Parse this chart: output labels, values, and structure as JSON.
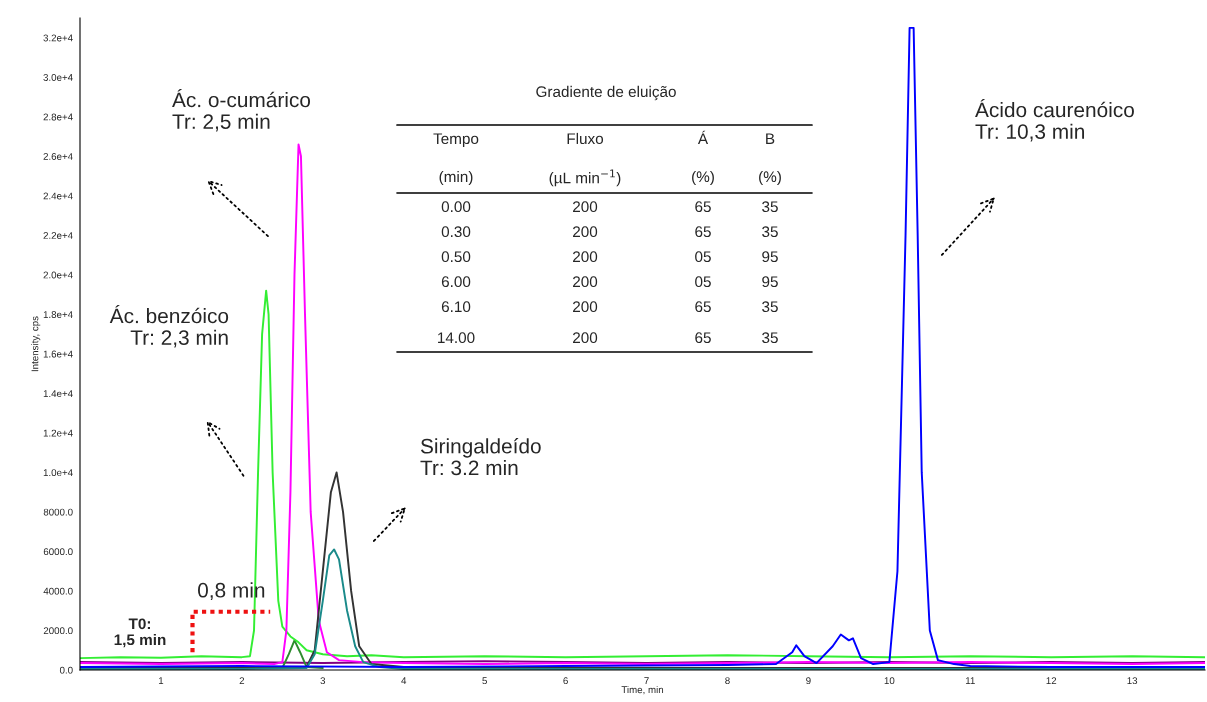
{
  "chart_data": {
    "type": "line",
    "xlabel": "Time, min",
    "ylabel": "Intensity, cps",
    "xlim": [
      0,
      13.9
    ],
    "ylim": [
      0,
      33000
    ],
    "xticks": [
      1,
      2,
      3,
      4,
      5,
      6,
      7,
      8,
      9,
      10,
      11,
      12,
      13
    ],
    "yticks": [
      {
        "value": 0,
        "label": "0.0"
      },
      {
        "value": 2000,
        "label": "2000.0"
      },
      {
        "value": 4000,
        "label": "4000.0"
      },
      {
        "value": 6000,
        "label": "6000.0"
      },
      {
        "value": 8000,
        "label": "8000.0"
      },
      {
        "value": 10000,
        "label": "1.0e+4"
      },
      {
        "value": 12000,
        "label": "1.2e+4"
      },
      {
        "value": 14000,
        "label": "1.4e+4"
      },
      {
        "value": 16000,
        "label": "1.6e+4"
      },
      {
        "value": 18000,
        "label": "1.8e+4"
      },
      {
        "value": 20000,
        "label": "2.0e+4"
      },
      {
        "value": 22000,
        "label": "2.2e+4"
      },
      {
        "value": 24000,
        "label": "2.4e+4"
      },
      {
        "value": 26000,
        "label": "2.6e+4"
      },
      {
        "value": 28000,
        "label": "2.8e+4"
      },
      {
        "value": 30000,
        "label": "3.0e+4"
      },
      {
        "value": 32000,
        "label": "3.2e+4"
      }
    ],
    "grid": false,
    "series": [
      {
        "color": "#800080",
        "x": [
          0,
          1,
          2,
          3,
          4,
          5,
          6,
          7,
          8,
          9,
          10,
          11,
          12,
          13,
          13.9
        ],
        "values": [
          400,
          350,
          400,
          350,
          400,
          450,
          400,
          350,
          400,
          350,
          400,
          350,
          400,
          350,
          400
        ]
      },
      {
        "color": "#2e8b2e",
        "x": [
          2.4,
          2.5,
          2.58,
          2.65,
          2.72,
          2.8,
          3
        ],
        "values": [
          100,
          100,
          800,
          1500,
          900,
          150,
          100
        ]
      },
      {
        "color": "#33ee33",
        "x": [
          0,
          0.5,
          1,
          1.5,
          2,
          2.1,
          2.15,
          2.2,
          2.25,
          2.3,
          2.33,
          2.38,
          2.45,
          2.5,
          2.6,
          2.7,
          2.8,
          3,
          3.3,
          3.6,
          4,
          5,
          6,
          7,
          8,
          9,
          10,
          11,
          12,
          13,
          13.9
        ],
        "values": [
          600,
          650,
          620,
          700,
          650,
          700,
          2000,
          10000,
          17000,
          19200,
          18000,
          10000,
          3500,
          2200,
          1700,
          1400,
          1000,
          800,
          700,
          750,
          650,
          700,
          650,
          700,
          750,
          700,
          650,
          700,
          650,
          700,
          650
        ]
      },
      {
        "color": "#ff00ff",
        "x": [
          0,
          1,
          2,
          2.4,
          2.5,
          2.55,
          2.6,
          2.65,
          2.7,
          2.73,
          2.78,
          2.85,
          2.95,
          3.05,
          3.2,
          3.5,
          4,
          5,
          6,
          7,
          8,
          9,
          10,
          11,
          12,
          13,
          13.9
        ],
        "values": [
          350,
          300,
          350,
          300,
          400,
          2000,
          9000,
          20000,
          26600,
          26000,
          18000,
          8000,
          2500,
          900,
          500,
          400,
          350,
          300,
          350,
          300,
          350,
          400,
          350,
          400,
          350,
          300,
          350
        ]
      },
      {
        "color": "#333333",
        "x": [
          0,
          2,
          2.8,
          2.9,
          3.0,
          3.1,
          3.17,
          3.25,
          3.35,
          3.45,
          3.6,
          4,
          6,
          8,
          10,
          12,
          13.9
        ],
        "values": [
          100,
          100,
          150,
          1000,
          5000,
          9000,
          10000,
          8000,
          4000,
          1200,
          300,
          150,
          100,
          100,
          100,
          100,
          100
        ]
      },
      {
        "color": "#1a8a8a",
        "x": [
          0,
          2,
          2.8,
          2.9,
          3.0,
          3.08,
          3.14,
          3.2,
          3.3,
          3.4,
          3.5,
          3.7,
          4,
          6,
          8,
          10,
          12,
          13.9
        ],
        "values": [
          50,
          50,
          100,
          800,
          3500,
          5800,
          6100,
          5600,
          3000,
          1200,
          400,
          150,
          50,
          50,
          50,
          50,
          50,
          50
        ]
      },
      {
        "color": "#ee1111",
        "line_style": "dotted",
        "x": [
          1.39,
          1.39,
          2.35
        ],
        "values": [
          900,
          2950,
          2950
        ]
      },
      {
        "color": "#0000ff",
        "x": [
          0,
          2,
          4,
          6,
          8,
          8.6,
          8.8,
          8.85,
          8.95,
          9.1,
          9.3,
          9.4,
          9.5,
          9.55,
          9.65,
          9.8,
          10.0,
          10.1,
          10.2,
          10.25,
          10.3,
          10.35,
          10.4,
          10.5,
          10.6,
          10.8,
          11,
          12,
          13,
          13.9
        ],
        "values": [
          150,
          200,
          150,
          200,
          250,
          300,
          900,
          1250,
          700,
          350,
          1200,
          1800,
          1500,
          1600,
          600,
          300,
          400,
          5000,
          22000,
          32500,
          32500,
          22000,
          10000,
          2000,
          500,
          300,
          200,
          150,
          150,
          150
        ]
      }
    ],
    "annotations": [
      "Ác. o-cumárico\nTr: 2,5 min",
      "Ác. benzóico\nTr: 2,3 min",
      "Siringaldeído\nTr: 3.2 min",
      "Ácido caurenóico\nTr: 10,3 min",
      {
        "text": "0,8 min",
        "x": 1.87,
        "y": 2950
      },
      "T0:\n1,5 min",
      "Gradiente de eluição",
      "Tempo",
      "Fluxo",
      "Á",
      "B",
      "(min)",
      "(µL min$^{−1}$)",
      "(%)",
      "(%)",
      "0.00",
      "200",
      "65",
      "35",
      "0.30",
      "200",
      "65",
      "35",
      "0.50",
      "200",
      "05",
      "95",
      "6.00",
      "200",
      "05",
      "95",
      "6.10",
      "200",
      "65",
      "35",
      "14.00",
      "200",
      "65",
      "35"
    ]
  }
}
